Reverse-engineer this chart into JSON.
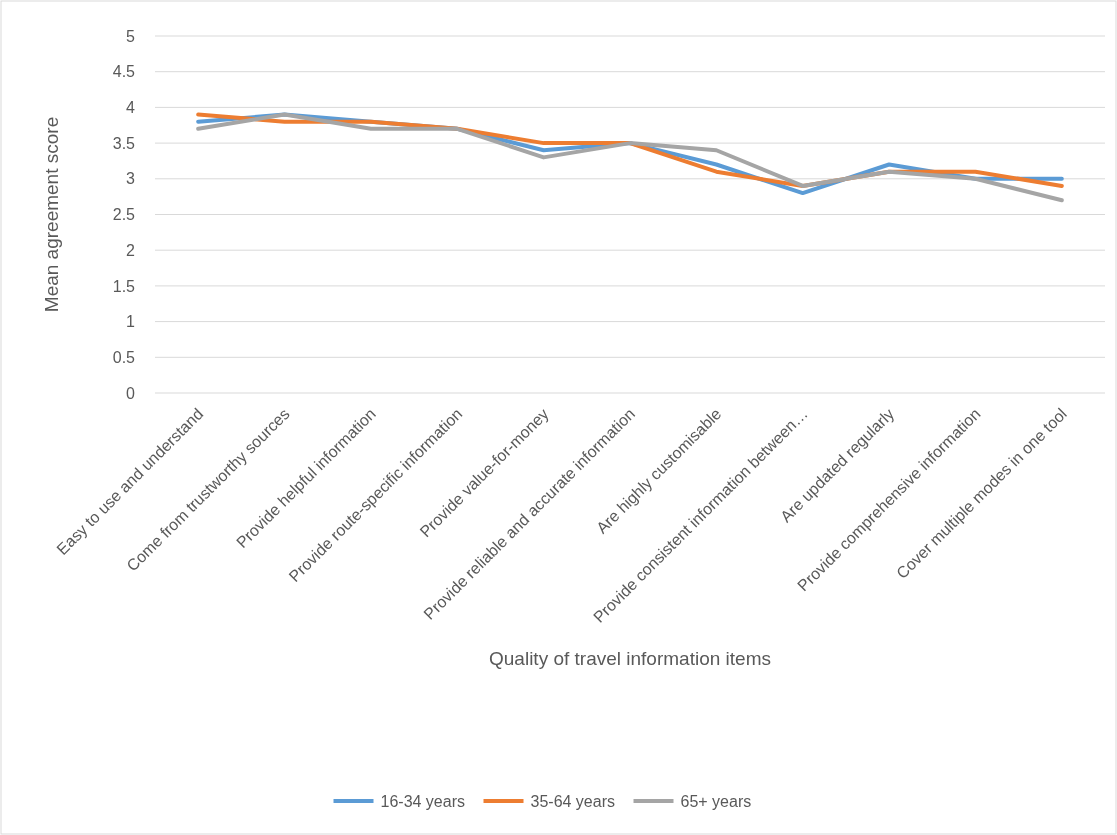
{
  "chart_data": {
    "type": "line",
    "xlabel": "Quality of travel information items",
    "ylabel": "Mean agreement score",
    "categories": [
      "Easy to use and understand",
      "Come from trustworthy sources",
      "Provide helpful information",
      "Provide route-specific information",
      "Provide value-for-money",
      "Provide reliable and accurate information",
      "Are highly customisable",
      "Provide consistent information between…",
      "Are updated regularly",
      "Provide comprehensive information",
      "Cover multiple modes in one tool"
    ],
    "series": [
      {
        "name": "16-34 years",
        "color": "#5b9bd5",
        "values": [
          3.8,
          3.9,
          3.8,
          3.7,
          3.4,
          3.5,
          3.2,
          2.8,
          3.2,
          3.0,
          3.0
        ]
      },
      {
        "name": "35-64 years",
        "color": "#ed7d31",
        "values": [
          3.9,
          3.8,
          3.8,
          3.7,
          3.5,
          3.5,
          3.1,
          2.9,
          3.1,
          3.1,
          2.9
        ]
      },
      {
        "name": "65+ years",
        "color": "#a5a5a5",
        "values": [
          3.7,
          3.9,
          3.7,
          3.7,
          3.3,
          3.5,
          3.4,
          2.9,
          3.1,
          3.0,
          2.7
        ]
      }
    ],
    "ylim": [
      0,
      5
    ],
    "yticks": [
      0,
      0.5,
      1,
      1.5,
      2,
      2.5,
      3,
      3.5,
      4,
      4.5,
      5
    ],
    "grid": "y",
    "legend": "bottom",
    "marker": "none",
    "line_style": "solid"
  }
}
